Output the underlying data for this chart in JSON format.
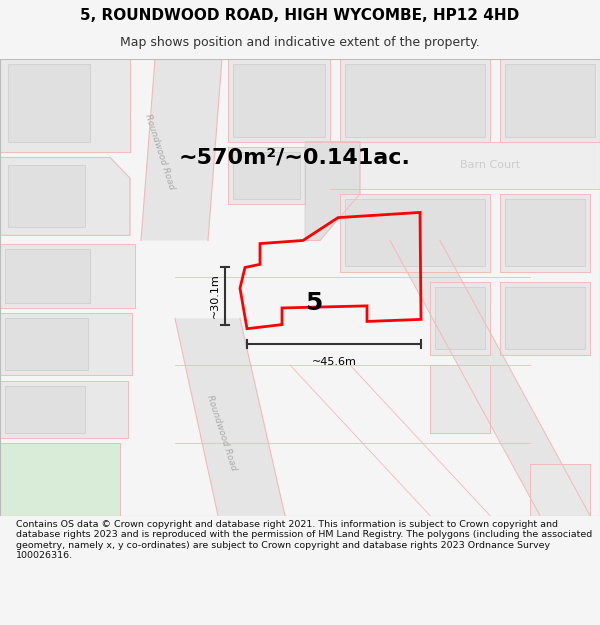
{
  "title": "5, ROUNDWOOD ROAD, HIGH WYCOMBE, HP12 4HD",
  "subtitle": "Map shows position and indicative extent of the property.",
  "footer": "Contains OS data © Crown copyright and database right 2021. This information is subject to Crown copyright and database rights 2023 and is reproduced with the permission of HM Land Registry. The polygons (including the associated geometry, namely x, y co-ordinates) are subject to Crown copyright and database rights 2023 Ordnance Survey 100026316.",
  "area_label": "~570m²/~0.141ac.",
  "barn_court_label": "Barn Court",
  "road_label_upper": "Roundwood Road",
  "road_label_lower": "Roundwood Road",
  "number_label": "5",
  "width_label": "~45.6m",
  "height_label": "~30.1m",
  "bg_color": "#f5f5f5",
  "map_bg": "#ffffff",
  "road_fill": "#e8e8e8",
  "road_line_color": "#f5b8b8",
  "block_fill": "#e8e8e8",
  "block_inner_fill": "#e0e0e0",
  "block_outline": "#d8c8c8",
  "plot_color": "#ff0000",
  "arrow_color": "#333333",
  "green_fill": "#d8ecd8",
  "title_fontsize": 11,
  "subtitle_fontsize": 9,
  "footer_fontsize": 6.8
}
